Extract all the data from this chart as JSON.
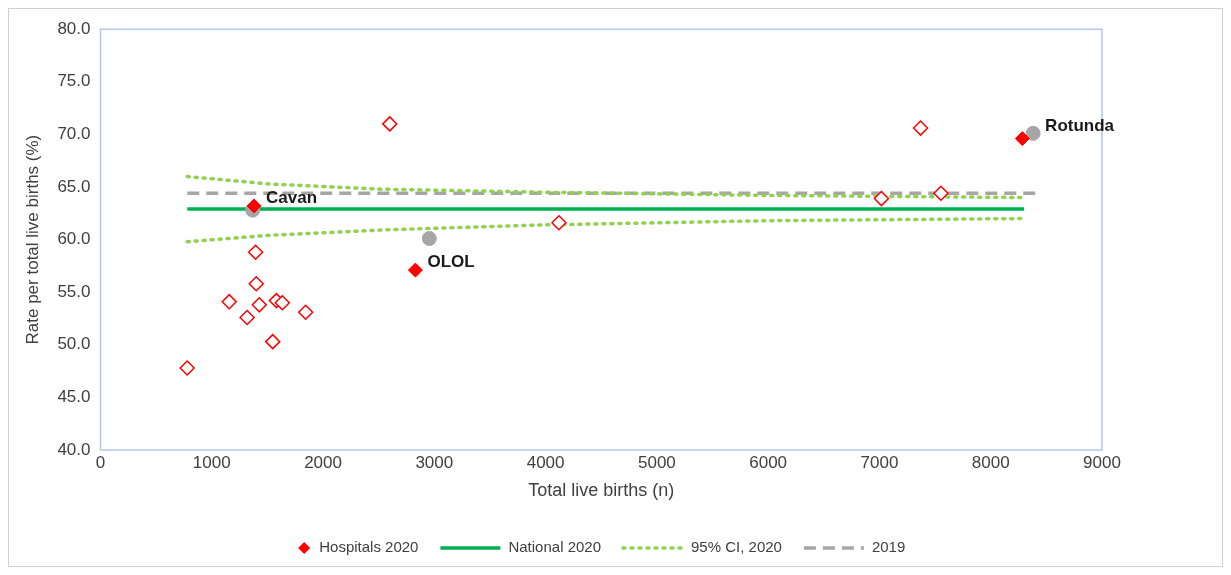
{
  "chart_data": {
    "type": "scatter",
    "xlabel": "Total live births (n)",
    "ylabel": "Rate per total live births (%)",
    "xlim": [
      0,
      9000
    ],
    "xticks": [
      0,
      1000,
      2000,
      3000,
      4000,
      5000,
      6000,
      7000,
      8000,
      9000
    ],
    "ylim": [
      40,
      80
    ],
    "yticks": [
      {
        "value": 40,
        "label": "40.0"
      },
      {
        "value": 45,
        "label": "45.0"
      },
      {
        "value": 50,
        "label": "50.0"
      },
      {
        "value": 55,
        "label": "55.0"
      },
      {
        "value": 60,
        "label": "60.0"
      },
      {
        "value": 65,
        "label": "65.0"
      },
      {
        "value": 70,
        "label": "70.0"
      },
      {
        "value": 75,
        "label": "75.0"
      },
      {
        "value": 80,
        "label": "80.0"
      }
    ],
    "grid": false,
    "legend": "bottom",
    "series": [
      {
        "name": "Hospitals 2020",
        "type": "scatter",
        "marker": "diamond",
        "color": "#ff0000",
        "x": [
          1380,
          2830,
          8284
        ],
        "values": [
          63.2,
          57.1,
          69.6
        ]
      },
      {
        "type": "scatter",
        "marker": "diamond",
        "color": "#ff0000",
        "x": [
          2600,
          4120,
          1394,
          1400,
          1157,
          1427,
          1581,
          1634,
          1318,
          1844,
          1548,
          779,
          7370,
          7018,
          7553
        ],
        "values": [
          71.0,
          61.6,
          58.8,
          55.8,
          54.1,
          53.8,
          54.2,
          54.0,
          52.6,
          53.1,
          50.3,
          47.8,
          70.6,
          63.9,
          64.4
        ]
      },
      {
        "type": "scatter",
        "marker": "circle",
        "color": "#a6a6a6",
        "x": [
          1368,
          2955,
          8381
        ],
        "values": [
          62.8,
          60.1,
          70.1
        ]
      },
      {
        "name": "National 2020",
        "type": "line",
        "line_style": "solid",
        "color": "#00b050",
        "x": [
          780,
          8300
        ],
        "values": [
          62.9,
          62.9
        ]
      },
      {
        "name": "95% CI, 2020",
        "type": "line",
        "line_style": "dotted",
        "color": "#92d050",
        "x": [
          780,
          1500,
          2500,
          4000,
          6000,
          8300
        ],
        "values": [
          66.0,
          65.3,
          64.8,
          64.5,
          64.2,
          64.0
        ]
      },
      {
        "type": "line",
        "line_style": "dotted",
        "color": "#92d050",
        "x": [
          780,
          1500,
          2500,
          4000,
          6000,
          8300
        ],
        "values": [
          59.8,
          60.4,
          60.9,
          61.4,
          61.8,
          62.0
        ]
      },
      {
        "name": "2019",
        "type": "line",
        "line_style": "dashed",
        "color": "#a6a6a6",
        "x": [
          780,
          8400
        ],
        "values": [
          64.4,
          64.4
        ]
      }
    ],
    "annotations": [
      {
        "text": "Cavan",
        "x": 1380,
        "y": 63.2
      },
      {
        "text": "OLOL",
        "x": 2830,
        "y": 57.1
      },
      {
        "text": "Rotunda",
        "x": 8381,
        "y": 70.1
      }
    ]
  }
}
